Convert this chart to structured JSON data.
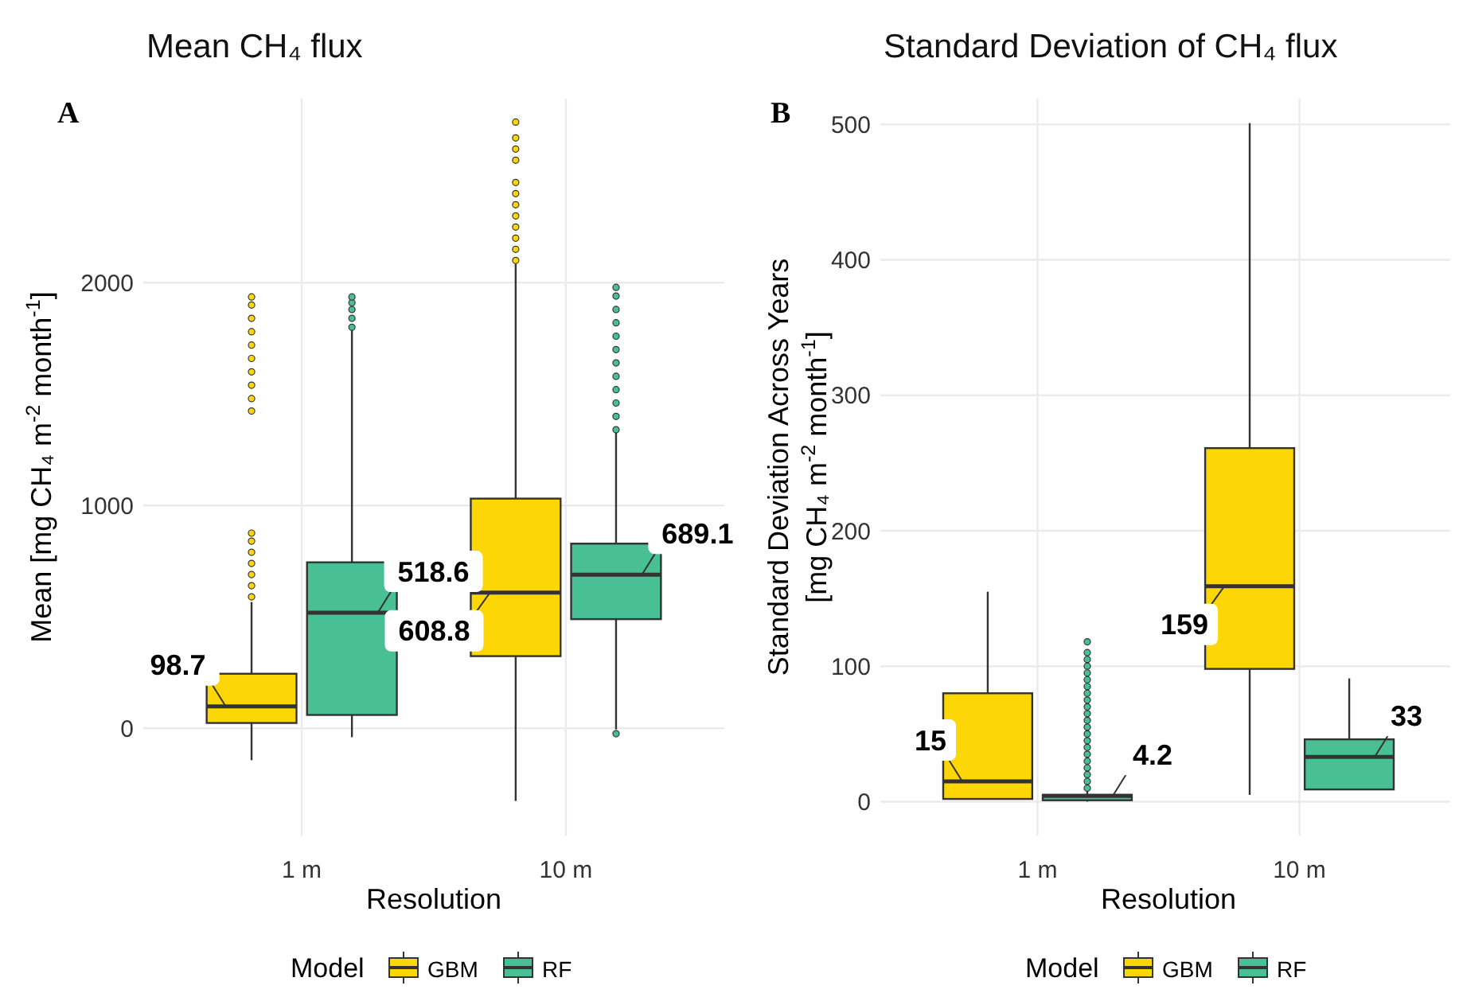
{
  "chart_data": [
    {
      "type": "box",
      "title": "Mean CH₄ flux",
      "xlabel": "Resolution",
      "ylabel": "Mean [mg CH₄ m$^{-2}$ month$^{-1}$]",
      "legend_title": "Model",
      "legend": "bottom",
      "grid": true,
      "categories": [
        "1 m",
        "10 m"
      ],
      "ylim": [
        -481,
        2826
      ],
      "yticks": [
        0,
        1000,
        2000
      ],
      "series": [
        {
          "name": "GBM",
          "color": "#fdd705",
          "boxes": [
            {
              "low": -143,
              "q1": 24,
              "median": 98.7,
              "q3": 245,
              "high": 567,
              "outliers": [
                590,
                640,
                690,
                740,
                790,
                840,
                876,
                1424,
                1480,
                1540,
                1600,
                1660,
                1720,
                1780,
                1840,
                1900,
                1936
              ]
            },
            {
              "low": -326,
              "q1": 324,
              "median": 608.8,
              "q3": 1031,
              "high": 2083,
              "outliers": [
                2100,
                2150,
                2200,
                2250,
                2300,
                2350,
                2400,
                2450,
                2550,
                2600,
                2650,
                2721
              ]
            }
          ]
        },
        {
          "name": "RF",
          "color": "#48bf95",
          "boxes": [
            {
              "low": -40,
              "q1": 60,
              "median": 518.6,
              "q3": 745,
              "high": 1790,
              "outliers": [
                1800,
                1840,
                1880,
                1910,
                1936
              ]
            },
            {
              "low": -5,
              "q1": 490,
              "median": 689.1,
              "q3": 829,
              "high": 1329,
              "outliers": [
                -24,
                1340,
                1400,
                1460,
                1520,
                1580,
                1640,
                1700,
                1760,
                1820,
                1880,
                1940,
                1979
              ]
            }
          ]
        }
      ],
      "annotations": [
        "A",
        "98.7",
        "518.6",
        "608.8",
        "689.1"
      ]
    },
    {
      "type": "box",
      "title": "Standard Deviation of CH₄ flux",
      "xlabel": "Resolution",
      "ylabel": "Standard Deviation Across Years\n[mg CH₄ m$^{-2}$ month$^{-1}$]",
      "legend_title": "Model",
      "legend": "bottom",
      "grid": true,
      "categories": [
        "1 m",
        "10 m"
      ],
      "ylim": [
        -25,
        519
      ],
      "yticks": [
        0,
        100,
        200,
        300,
        400,
        500
      ],
      "series": [
        {
          "name": "GBM",
          "color": "#fdd705",
          "boxes": [
            {
              "low": 2,
              "q1": 2,
              "median": 15,
              "q3": 80,
              "high": 155
            },
            {
              "low": 5,
              "q1": 98,
              "median": 159,
              "q3": 261,
              "high": 501
            }
          ]
        },
        {
          "name": "RF",
          "color": "#48bf95",
          "boxes": [
            {
              "low": 0,
              "q1": 1,
              "median": 4.2,
              "q3": 5,
              "high": 8,
              "outliers": [
                10,
                15,
                20,
                25,
                30,
                35,
                40,
                45,
                50,
                55,
                60,
                65,
                70,
                75,
                80,
                85,
                90,
                95,
                100,
                105,
                110,
                118
              ]
            },
            {
              "low": 9,
              "q1": 9,
              "median": 33,
              "q3": 46,
              "high": 91
            }
          ]
        }
      ],
      "annotations": [
        "B",
        "15",
        "4.2",
        "159",
        "33"
      ]
    }
  ]
}
